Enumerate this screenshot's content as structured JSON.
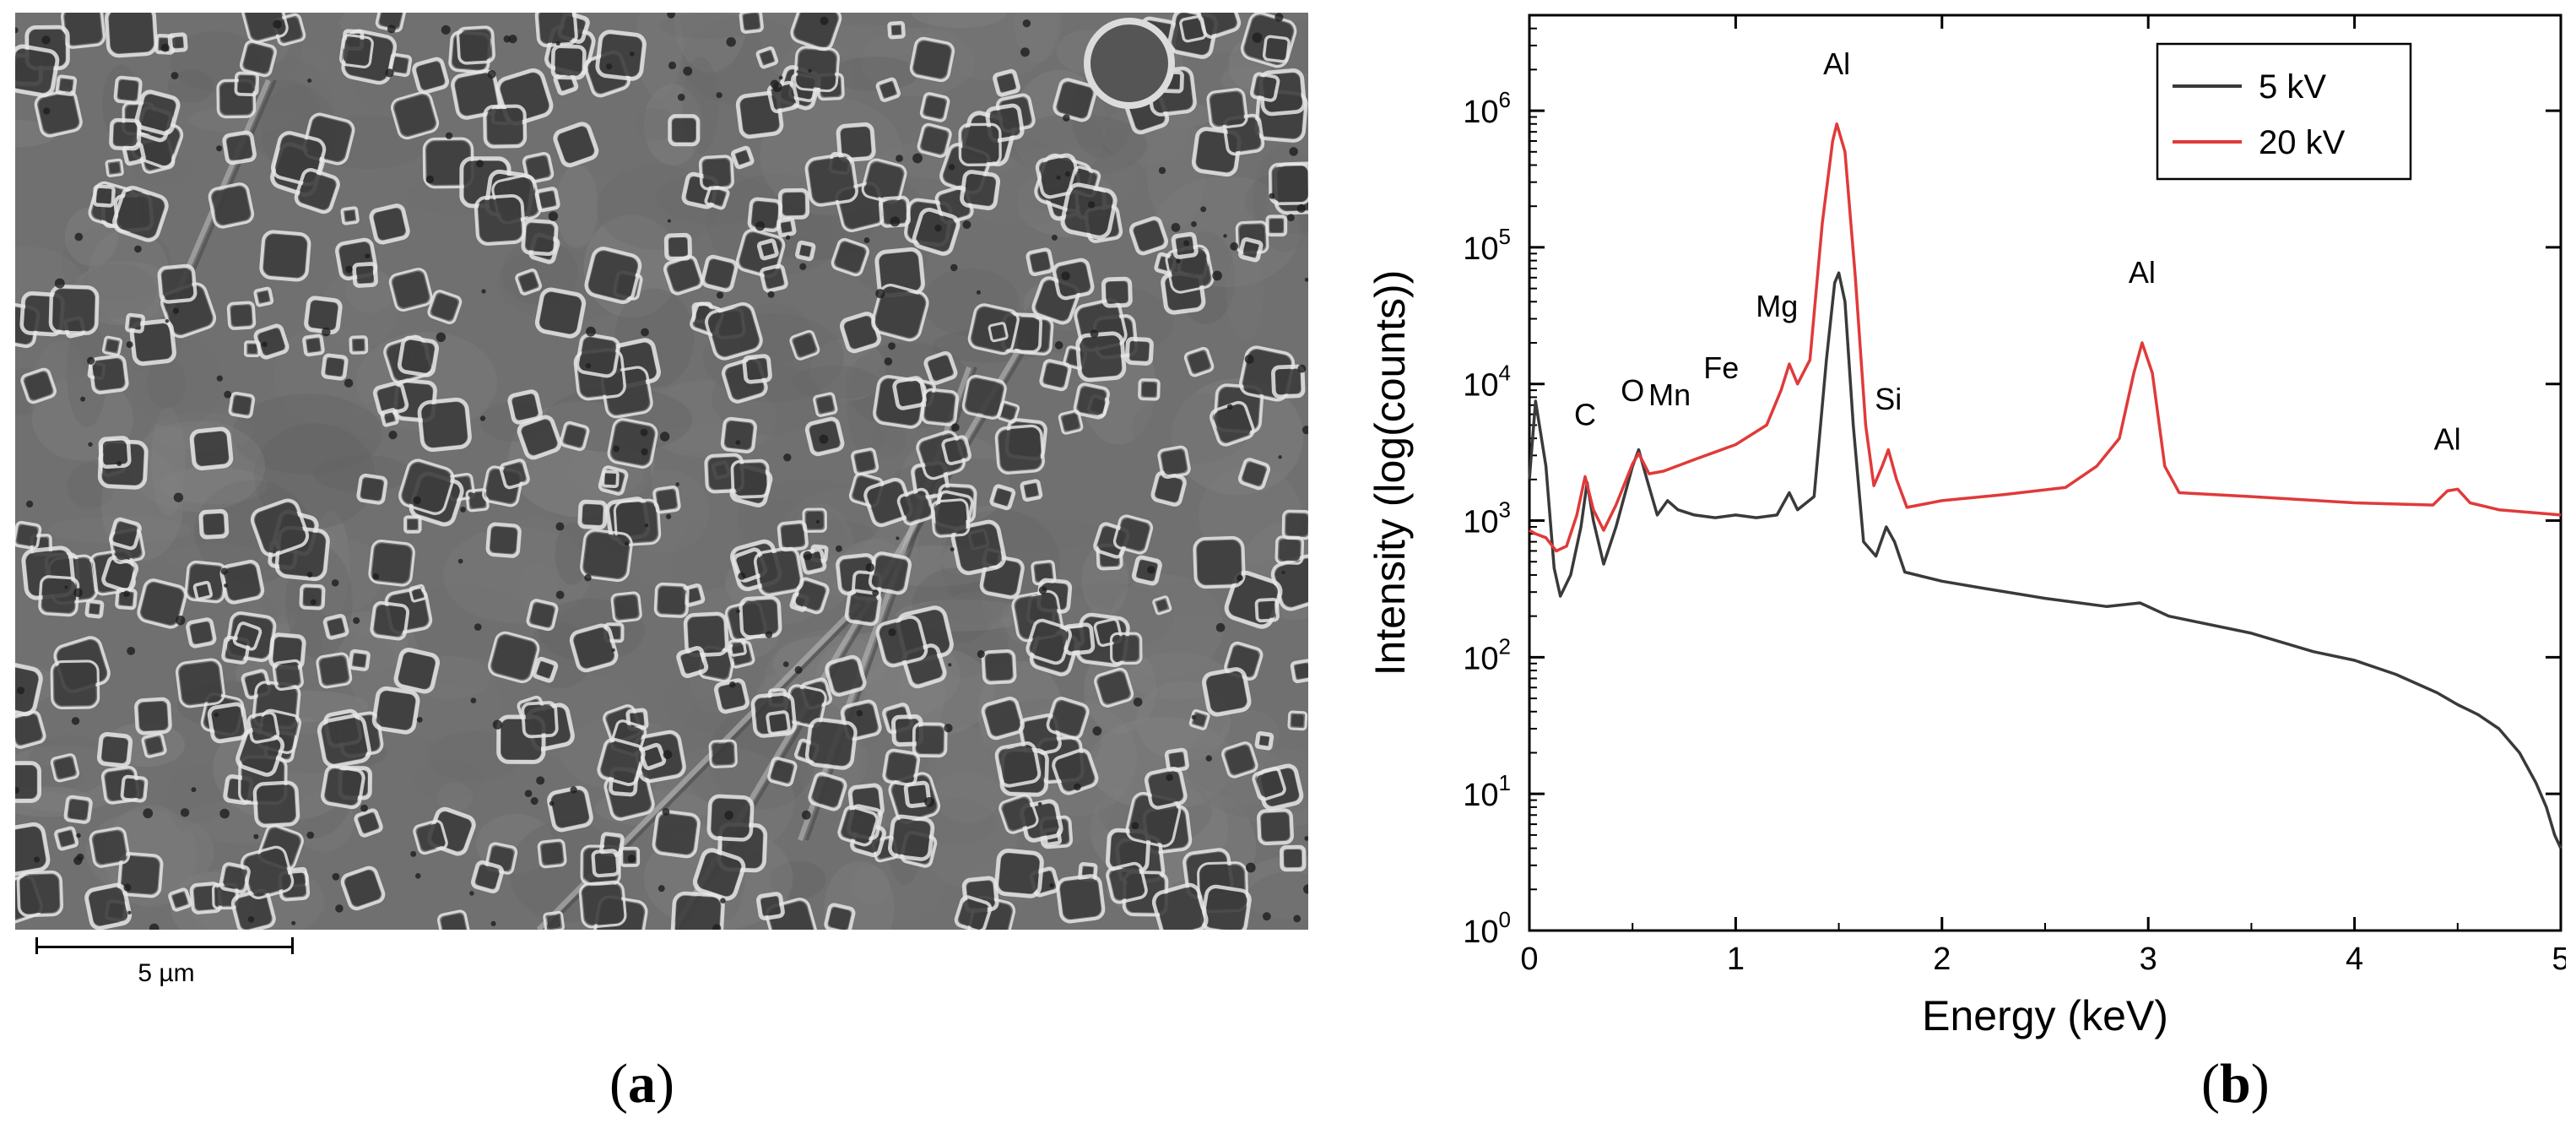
{
  "panel_a": {
    "label": "a",
    "scale_bar_label": "5 µm"
  },
  "panel_b": {
    "label": "b"
  },
  "chart_data": {
    "type": "line",
    "title": "",
    "xlabel": "Energy (keV)",
    "ylabel": "Intensity (log(counts))",
    "xlim": [
      0,
      5
    ],
    "ylim": [
      1,
      5000000
    ],
    "yscale": "log",
    "x_ticks": [
      0,
      1,
      2,
      3,
      4,
      5
    ],
    "y_ticks": [
      {
        "value": 1,
        "base": "10",
        "exp": "0"
      },
      {
        "value": 10,
        "base": "10",
        "exp": "1"
      },
      {
        "value": 100,
        "base": "10",
        "exp": "2"
      },
      {
        "value": 1000,
        "base": "10",
        "exp": "3"
      },
      {
        "value": 10000,
        "base": "10",
        "exp": "4"
      },
      {
        "value": 100000,
        "base": "10",
        "exp": "5"
      },
      {
        "value": 1000000,
        "base": "10",
        "exp": "6"
      }
    ],
    "grid": false,
    "legend_position": "top-right",
    "series": [
      {
        "name": "5 kV",
        "color": "#3a3a3a",
        "points": [
          [
            0.0,
            2000
          ],
          [
            0.03,
            7500
          ],
          [
            0.08,
            2500
          ],
          [
            0.12,
            450
          ],
          [
            0.15,
            280
          ],
          [
            0.2,
            400
          ],
          [
            0.25,
            900
          ],
          [
            0.28,
            1900
          ],
          [
            0.31,
            1000
          ],
          [
            0.36,
            480
          ],
          [
            0.42,
            900
          ],
          [
            0.5,
            2500
          ],
          [
            0.53,
            3300
          ],
          [
            0.57,
            2000
          ],
          [
            0.62,
            1100
          ],
          [
            0.67,
            1400
          ],
          [
            0.72,
            1200
          ],
          [
            0.8,
            1100
          ],
          [
            0.9,
            1050
          ],
          [
            1.0,
            1100
          ],
          [
            1.1,
            1050
          ],
          [
            1.2,
            1100
          ],
          [
            1.26,
            1600
          ],
          [
            1.3,
            1200
          ],
          [
            1.38,
            1500
          ],
          [
            1.44,
            15000
          ],
          [
            1.48,
            55000
          ],
          [
            1.5,
            65000
          ],
          [
            1.53,
            40000
          ],
          [
            1.57,
            5000
          ],
          [
            1.62,
            700
          ],
          [
            1.68,
            550
          ],
          [
            1.73,
            900
          ],
          [
            1.77,
            700
          ],
          [
            1.82,
            420
          ],
          [
            2.0,
            360
          ],
          [
            2.2,
            320
          ],
          [
            2.5,
            270
          ],
          [
            2.8,
            235
          ],
          [
            2.96,
            250
          ],
          [
            3.1,
            200
          ],
          [
            3.5,
            150
          ],
          [
            3.8,
            110
          ],
          [
            4.0,
            95
          ],
          [
            4.2,
            75
          ],
          [
            4.4,
            55
          ],
          [
            4.5,
            45
          ],
          [
            4.6,
            38
          ],
          [
            4.7,
            30
          ],
          [
            4.8,
            20
          ],
          [
            4.88,
            12
          ],
          [
            4.93,
            8
          ],
          [
            4.97,
            5
          ],
          [
            5.0,
            4
          ]
        ]
      },
      {
        "name": "20 kV",
        "color": "#e03a3a",
        "points": [
          [
            0.0,
            850
          ],
          [
            0.03,
            800
          ],
          [
            0.08,
            750
          ],
          [
            0.13,
            600
          ],
          [
            0.18,
            650
          ],
          [
            0.23,
            1100
          ],
          [
            0.27,
            2100
          ],
          [
            0.31,
            1200
          ],
          [
            0.36,
            850
          ],
          [
            0.42,
            1300
          ],
          [
            0.5,
            2600
          ],
          [
            0.53,
            3100
          ],
          [
            0.58,
            2200
          ],
          [
            0.65,
            2300
          ],
          [
            0.8,
            2800
          ],
          [
            1.0,
            3600
          ],
          [
            1.15,
            5000
          ],
          [
            1.22,
            9000
          ],
          [
            1.26,
            14000
          ],
          [
            1.3,
            10000
          ],
          [
            1.36,
            15000
          ],
          [
            1.42,
            150000
          ],
          [
            1.47,
            600000
          ],
          [
            1.49,
            800000
          ],
          [
            1.53,
            500000
          ],
          [
            1.58,
            60000
          ],
          [
            1.63,
            5000
          ],
          [
            1.67,
            1800
          ],
          [
            1.71,
            2500
          ],
          [
            1.74,
            3300
          ],
          [
            1.78,
            2000
          ],
          [
            1.83,
            1250
          ],
          [
            2.0,
            1400
          ],
          [
            2.3,
            1550
          ],
          [
            2.6,
            1750
          ],
          [
            2.75,
            2500
          ],
          [
            2.86,
            4000
          ],
          [
            2.93,
            12000
          ],
          [
            2.97,
            20000
          ],
          [
            3.02,
            12000
          ],
          [
            3.08,
            2500
          ],
          [
            3.15,
            1600
          ],
          [
            3.5,
            1500
          ],
          [
            4.0,
            1350
          ],
          [
            4.38,
            1300
          ],
          [
            4.45,
            1650
          ],
          [
            4.5,
            1700
          ],
          [
            4.56,
            1350
          ],
          [
            4.7,
            1200
          ],
          [
            5.0,
            1100
          ]
        ]
      }
    ],
    "annotations": [
      {
        "text": "C",
        "x": 0.27,
        "y": 5000
      },
      {
        "text": "O",
        "x": 0.5,
        "y": 7500
      },
      {
        "text": "Mn",
        "x": 0.68,
        "y": 7000
      },
      {
        "text": "Fe",
        "x": 0.93,
        "y": 11000
      },
      {
        "text": "Mg",
        "x": 1.2,
        "y": 31000
      },
      {
        "text": "Al",
        "x": 1.49,
        "y": 1850000
      },
      {
        "text": "Si",
        "x": 1.74,
        "y": 6500
      },
      {
        "text": "Al",
        "x": 2.97,
        "y": 55000
      },
      {
        "text": "Al",
        "x": 4.45,
        "y": 3300
      }
    ]
  }
}
